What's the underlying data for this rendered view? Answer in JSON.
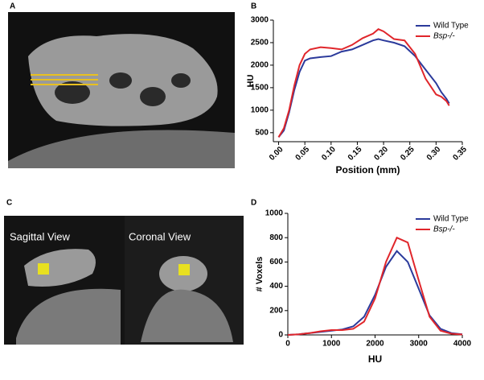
{
  "panel_labels": [
    "A",
    "B",
    "C",
    "D"
  ],
  "image_labels": [
    "Sagittal View",
    "Coronal View"
  ],
  "chart_data": [
    {
      "type": "line",
      "xlabel": "Position (mm)",
      "ylabel": "HU",
      "x": [
        0,
        0.01,
        0.02,
        0.03,
        0.04,
        0.05,
        0.06,
        0.08,
        0.1,
        0.12,
        0.14,
        0.16,
        0.18,
        0.19,
        0.2,
        0.22,
        0.24,
        0.26,
        0.28,
        0.3,
        0.31,
        0.32,
        0.325
      ],
      "series": [
        {
          "name": "Wild Type",
          "color": "#2b3a9b",
          "values": [
            400,
            550,
            950,
            1450,
            1850,
            2100,
            2150,
            2180,
            2200,
            2300,
            2350,
            2450,
            2550,
            2580,
            2550,
            2500,
            2420,
            2200,
            1900,
            1600,
            1400,
            1250,
            1150
          ]
        },
        {
          "name": "Bsp-/-",
          "color": "#e0262b",
          "values": [
            400,
            600,
            1000,
            1550,
            2000,
            2250,
            2350,
            2400,
            2380,
            2350,
            2450,
            2600,
            2700,
            2800,
            2750,
            2580,
            2550,
            2250,
            1700,
            1350,
            1300,
            1200,
            1100
          ]
        }
      ],
      "xlim": [
        -0.01,
        0.35
      ],
      "ylim": [
        300,
        3000
      ],
      "xticks": [
        {
          "value": 0,
          "label": "0.00"
        },
        0.05,
        {
          "value": 0.1,
          "label": "0.10"
        },
        0.15,
        {
          "value": 0.2,
          "label": "0.20"
        },
        0.25,
        {
          "value": 0.3,
          "label": "0.30"
        },
        0.35
      ],
      "yticks": [
        500,
        1000,
        1500,
        2000,
        2500,
        3000
      ],
      "legend": "upper right"
    },
    {
      "type": "line",
      "xlabel": "HU",
      "ylabel": "# Voxels",
      "x": [
        0,
        250,
        500,
        750,
        1000,
        1250,
        1500,
        1750,
        2000,
        2250,
        2500,
        2750,
        3000,
        3250,
        3500,
        3750,
        4000
      ],
      "series": [
        {
          "name": "Wild Type",
          "color": "#2b3a9b",
          "values": [
            0,
            5,
            15,
            25,
            35,
            45,
            70,
            150,
            330,
            560,
            690,
            600,
            380,
            160,
            50,
            15,
            5
          ]
        },
        {
          "name": "Bsp-/-",
          "color": "#e0262b",
          "values": [
            0,
            5,
            15,
            30,
            40,
            40,
            50,
            110,
            300,
            600,
            800,
            760,
            450,
            150,
            35,
            10,
            3
          ]
        }
      ],
      "xlim": [
        0,
        4000
      ],
      "ylim": [
        0,
        1000
      ],
      "xticks": [
        0,
        1000,
        2000,
        3000,
        4000
      ],
      "yticks": [
        0,
        200,
        400,
        600,
        800,
        1000
      ],
      "legend": "upper right"
    }
  ]
}
